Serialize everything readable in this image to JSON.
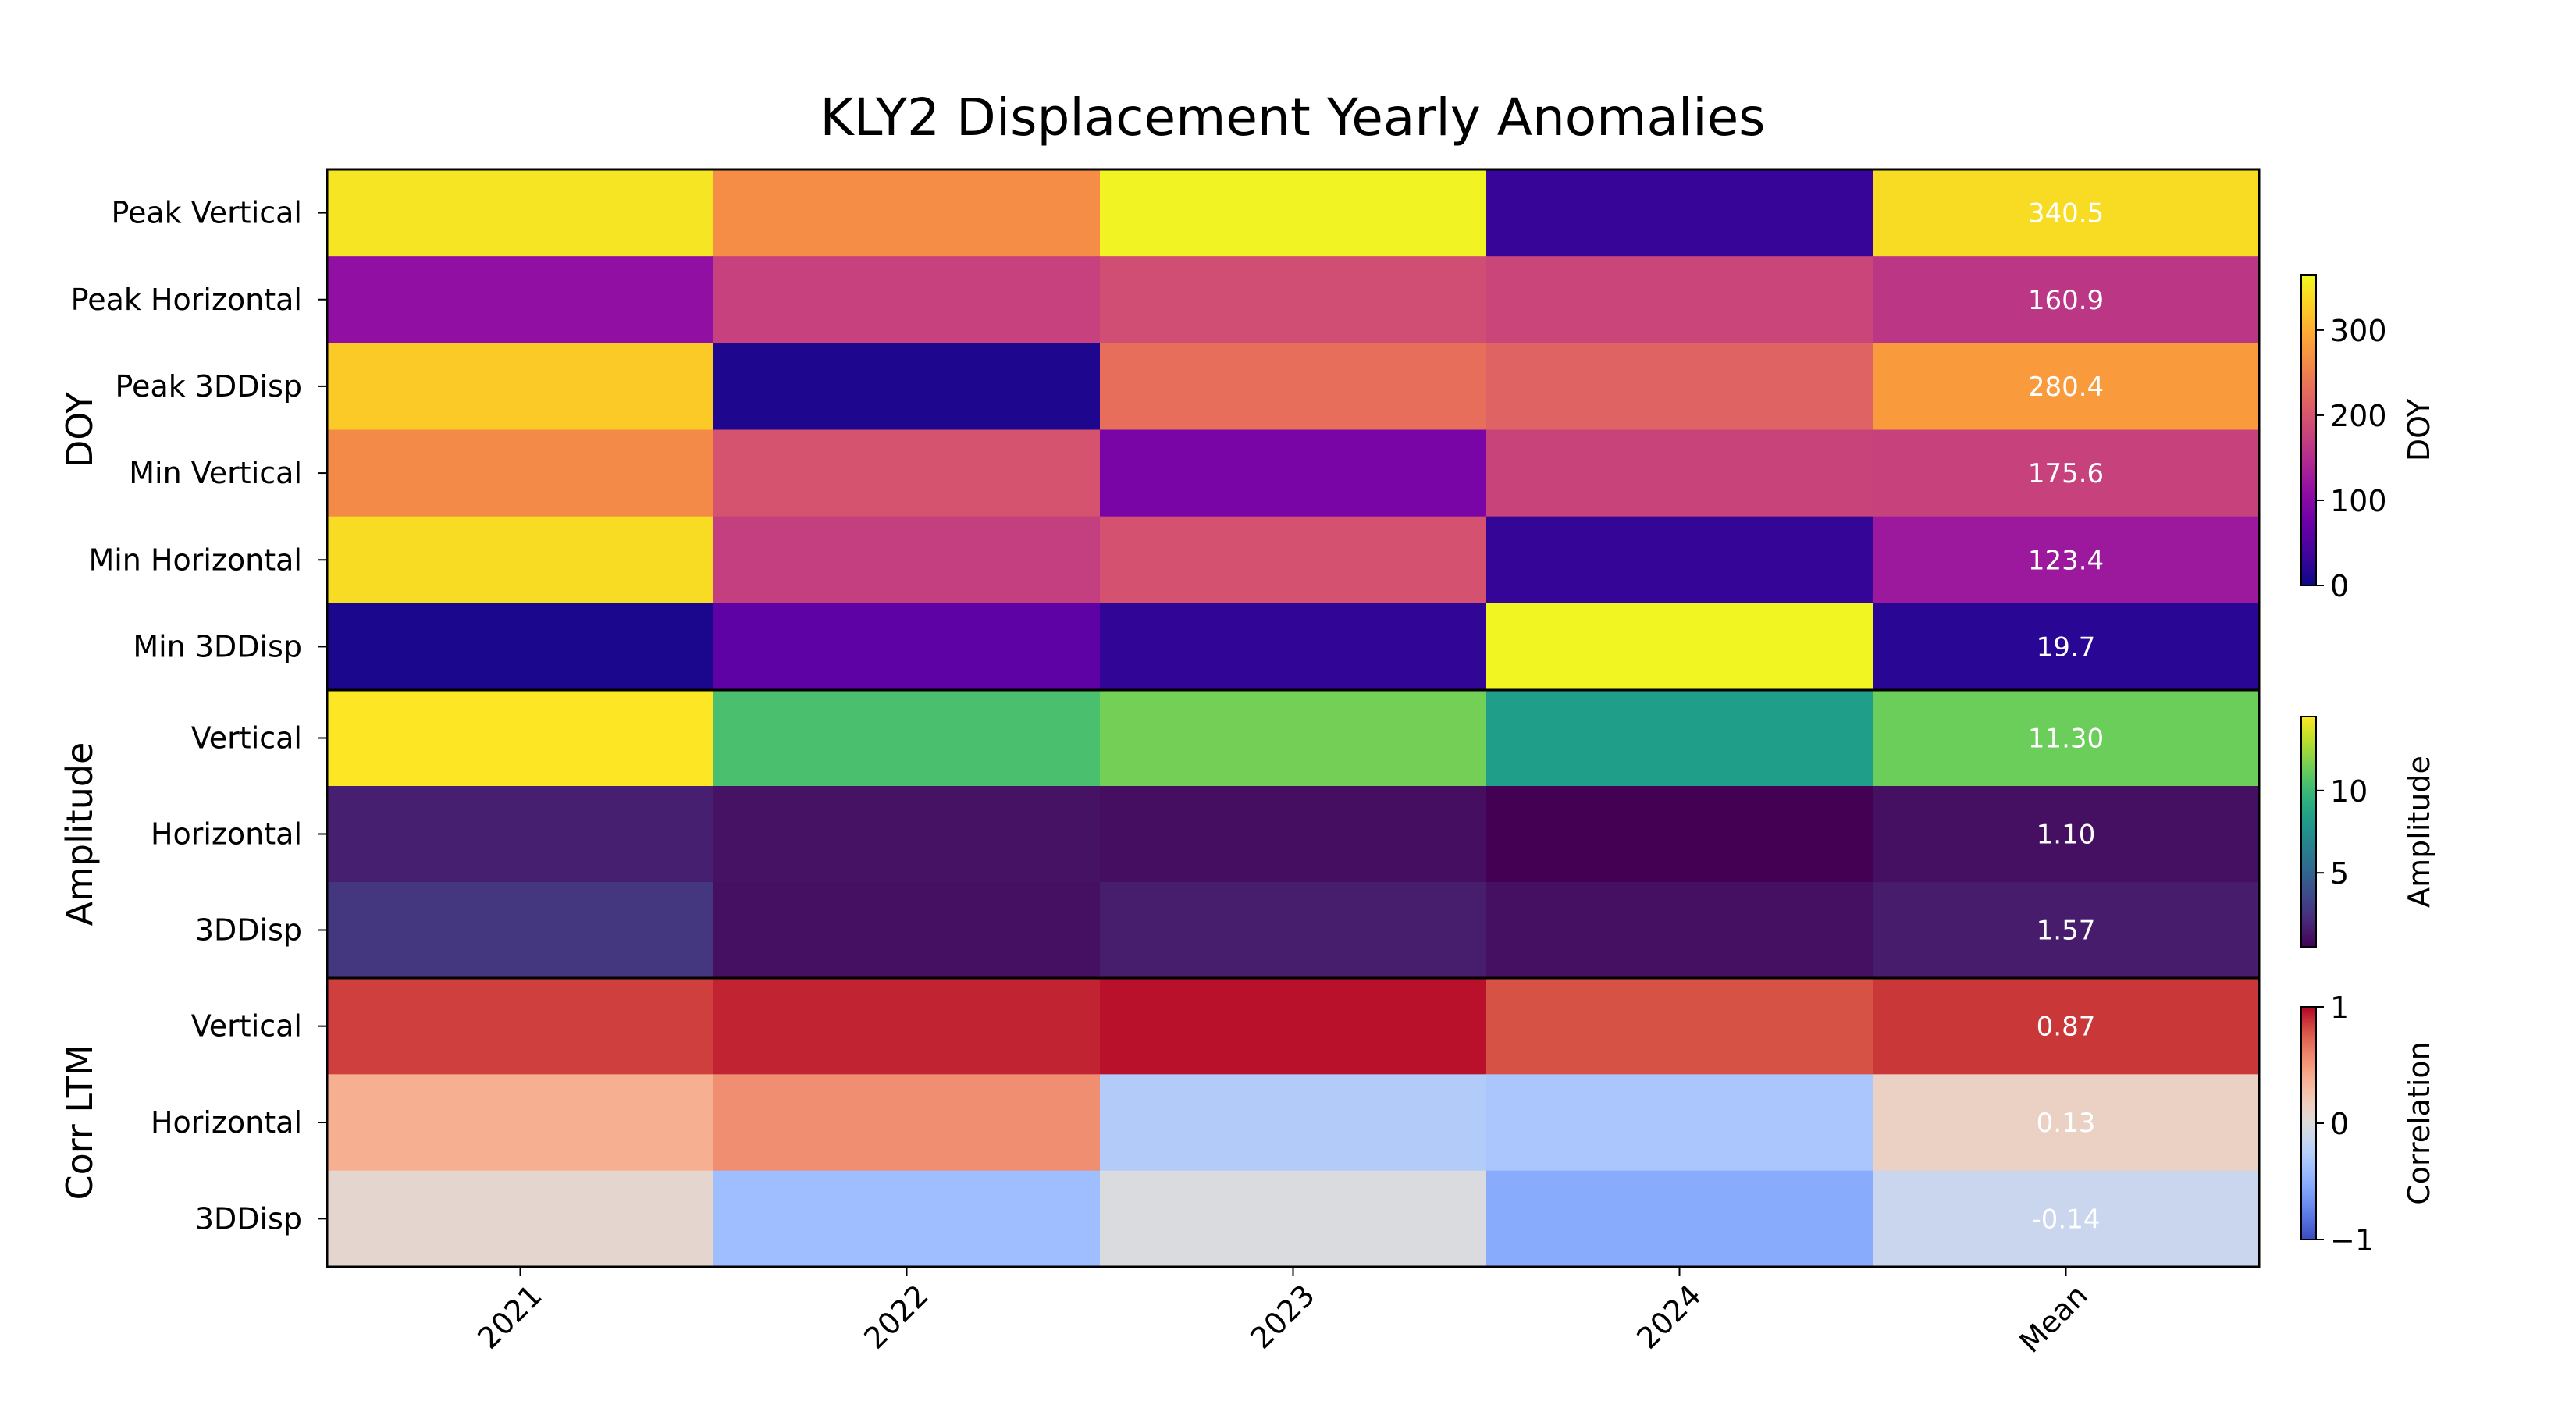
{
  "chart_data": {
    "type": "heatmap",
    "title": "KLY2 Displacement Yearly Anomalies",
    "columns": [
      "2021",
      "2022",
      "2023",
      "2024",
      "Mean"
    ],
    "groups": [
      {
        "label": "DOY",
        "colormap": "plasma",
        "vmin": 0,
        "vmax": 365,
        "colorbar_label": "DOY",
        "colorbar_ticks": [
          0,
          100,
          200,
          300
        ],
        "colorbar_tick_labels": [
          "0",
          "100",
          "200",
          "300"
        ],
        "rows": [
          {
            "label": "Peak Vertical",
            "values": [
              348,
              265,
              360,
              30,
              340.5
            ],
            "mean_text": "340.5"
          },
          {
            "label": "Peak Horizontal",
            "values": [
              112,
              175,
              190,
              180,
              160.9
            ],
            "mean_text": "160.9"
          },
          {
            "label": "Peak 3DDisp",
            "values": [
              325,
              12,
              230,
              218,
              280.4
            ],
            "mean_text": "280.4"
          },
          {
            "label": "Min Vertical",
            "values": [
              262,
              198,
              88,
              178,
              175.6
            ],
            "mean_text": "175.6"
          },
          {
            "label": "Min Horizontal",
            "values": [
              340,
              172,
              196,
              28,
              123.4
            ],
            "mean_text": "123.4"
          },
          {
            "label": "Min 3DDisp",
            "values": [
              10,
              62,
              25,
              362,
              19.7
            ],
            "mean_text": "19.7"
          }
        ]
      },
      {
        "label": "Amplitude",
        "colormap": "viridis",
        "vmin": 0.5,
        "vmax": 14.5,
        "colorbar_label": "Amplitude",
        "colorbar_ticks": [
          5,
          10
        ],
        "colorbar_tick_labels": [
          "5",
          "10"
        ],
        "rows": [
          {
            "label": "Vertical",
            "values": [
              14.5,
              10.4,
              11.5,
              8.3,
              11.3
            ],
            "mean_text": "11.30"
          },
          {
            "label": "Horizontal",
            "values": [
              1.7,
              1.2,
              1.0,
              0.5,
              1.1
            ],
            "mean_text": "1.10"
          },
          {
            "label": "3DDisp",
            "values": [
              2.7,
              1.1,
              1.6,
              1.1,
              1.57
            ],
            "mean_text": "1.57"
          }
        ]
      },
      {
        "label": "Corr LTM",
        "colormap": "coolwarm",
        "vmin": -1,
        "vmax": 1,
        "colorbar_label": "Correlation",
        "colorbar_ticks": [
          -1,
          0,
          1
        ],
        "colorbar_tick_labels": [
          "−1",
          "0",
          "1"
        ],
        "rows": [
          {
            "label": "Vertical",
            "values": [
              0.85,
              0.92,
              0.97,
              0.8,
              0.87
            ],
            "mean_text": "0.87"
          },
          {
            "label": "Horizontal",
            "values": [
              0.38,
              0.55,
              -0.28,
              -0.33,
              0.13
            ],
            "mean_text": "0.13"
          },
          {
            "label": "3DDisp",
            "values": [
              0.07,
              -0.4,
              -0.02,
              -0.52,
              -0.14
            ],
            "mean_text": "-0.14"
          }
        ]
      }
    ]
  }
}
